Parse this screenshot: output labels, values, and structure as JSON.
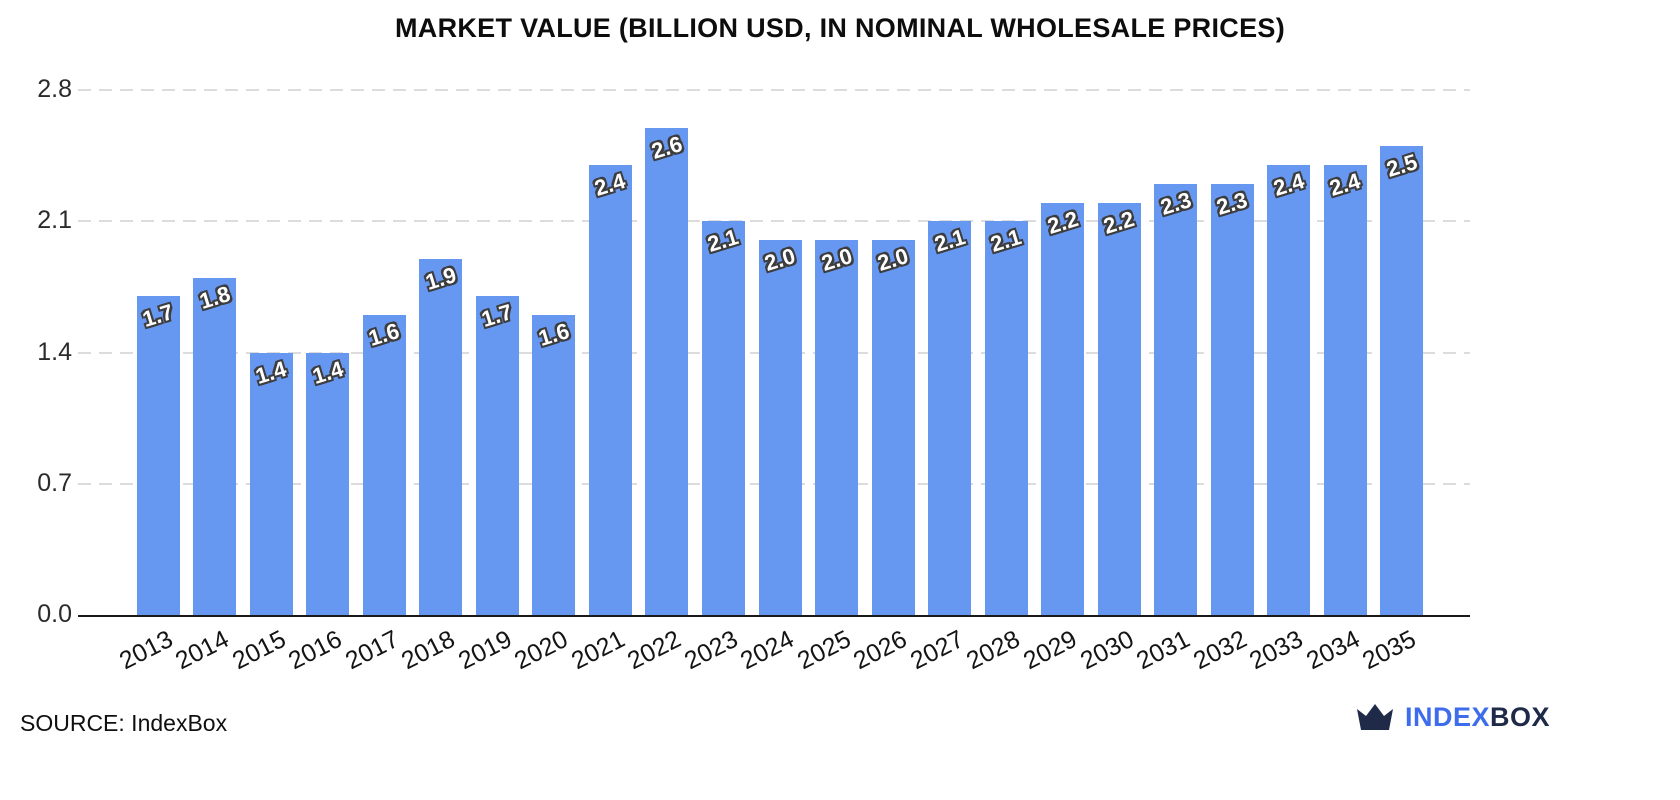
{
  "chart_data": {
    "type": "bar",
    "title": "MARKET VALUE (BILLION USD, IN NOMINAL WHOLESALE PRICES)",
    "xlabel": "",
    "ylabel": "",
    "categories": [
      "2013",
      "2014",
      "2015",
      "2016",
      "2017",
      "2018",
      "2019",
      "2020",
      "2021",
      "2022",
      "2023",
      "2024",
      "2025",
      "2026",
      "2027",
      "2028",
      "2029",
      "2030",
      "2031",
      "2032",
      "2033",
      "2034",
      "2035"
    ],
    "values": [
      1.7,
      1.8,
      1.4,
      1.4,
      1.6,
      1.9,
      1.7,
      1.6,
      2.4,
      2.6,
      2.1,
      2.0,
      2.0,
      2.0,
      2.1,
      2.1,
      2.2,
      2.2,
      2.3,
      2.3,
      2.4,
      2.4,
      2.5
    ],
    "value_labels": [
      "1.7",
      "1.8",
      "1.4",
      "1.4",
      "1.6",
      "1.9",
      "1.7",
      "1.6",
      "2.4",
      "2.6",
      "2.1",
      "2.0",
      "2.0",
      "2.0",
      "2.1",
      "2.1",
      "2.2",
      "2.2",
      "2.3",
      "2.3",
      "2.4",
      "2.4",
      "2.5"
    ],
    "ylim": [
      0,
      2.8
    ],
    "yticks": [
      0.0,
      0.7,
      1.4,
      2.1,
      2.8
    ],
    "ytick_labels": [
      "0.0",
      "0.7",
      "1.4",
      "2.1",
      "2.8"
    ],
    "grid": "horizontal-dashed",
    "legend": "none",
    "bar_color": "#6697F1",
    "value_label_color": "#ffffff",
    "value_label_outline": "#3d3d3d"
  },
  "footer": {
    "source": "SOURCE: IndexBox",
    "logo_text_primary": "INDEX",
    "logo_text_secondary": "BOX",
    "logo_color_primary": "#3D6DEB",
    "logo_color_secondary": "#1E2A47"
  }
}
